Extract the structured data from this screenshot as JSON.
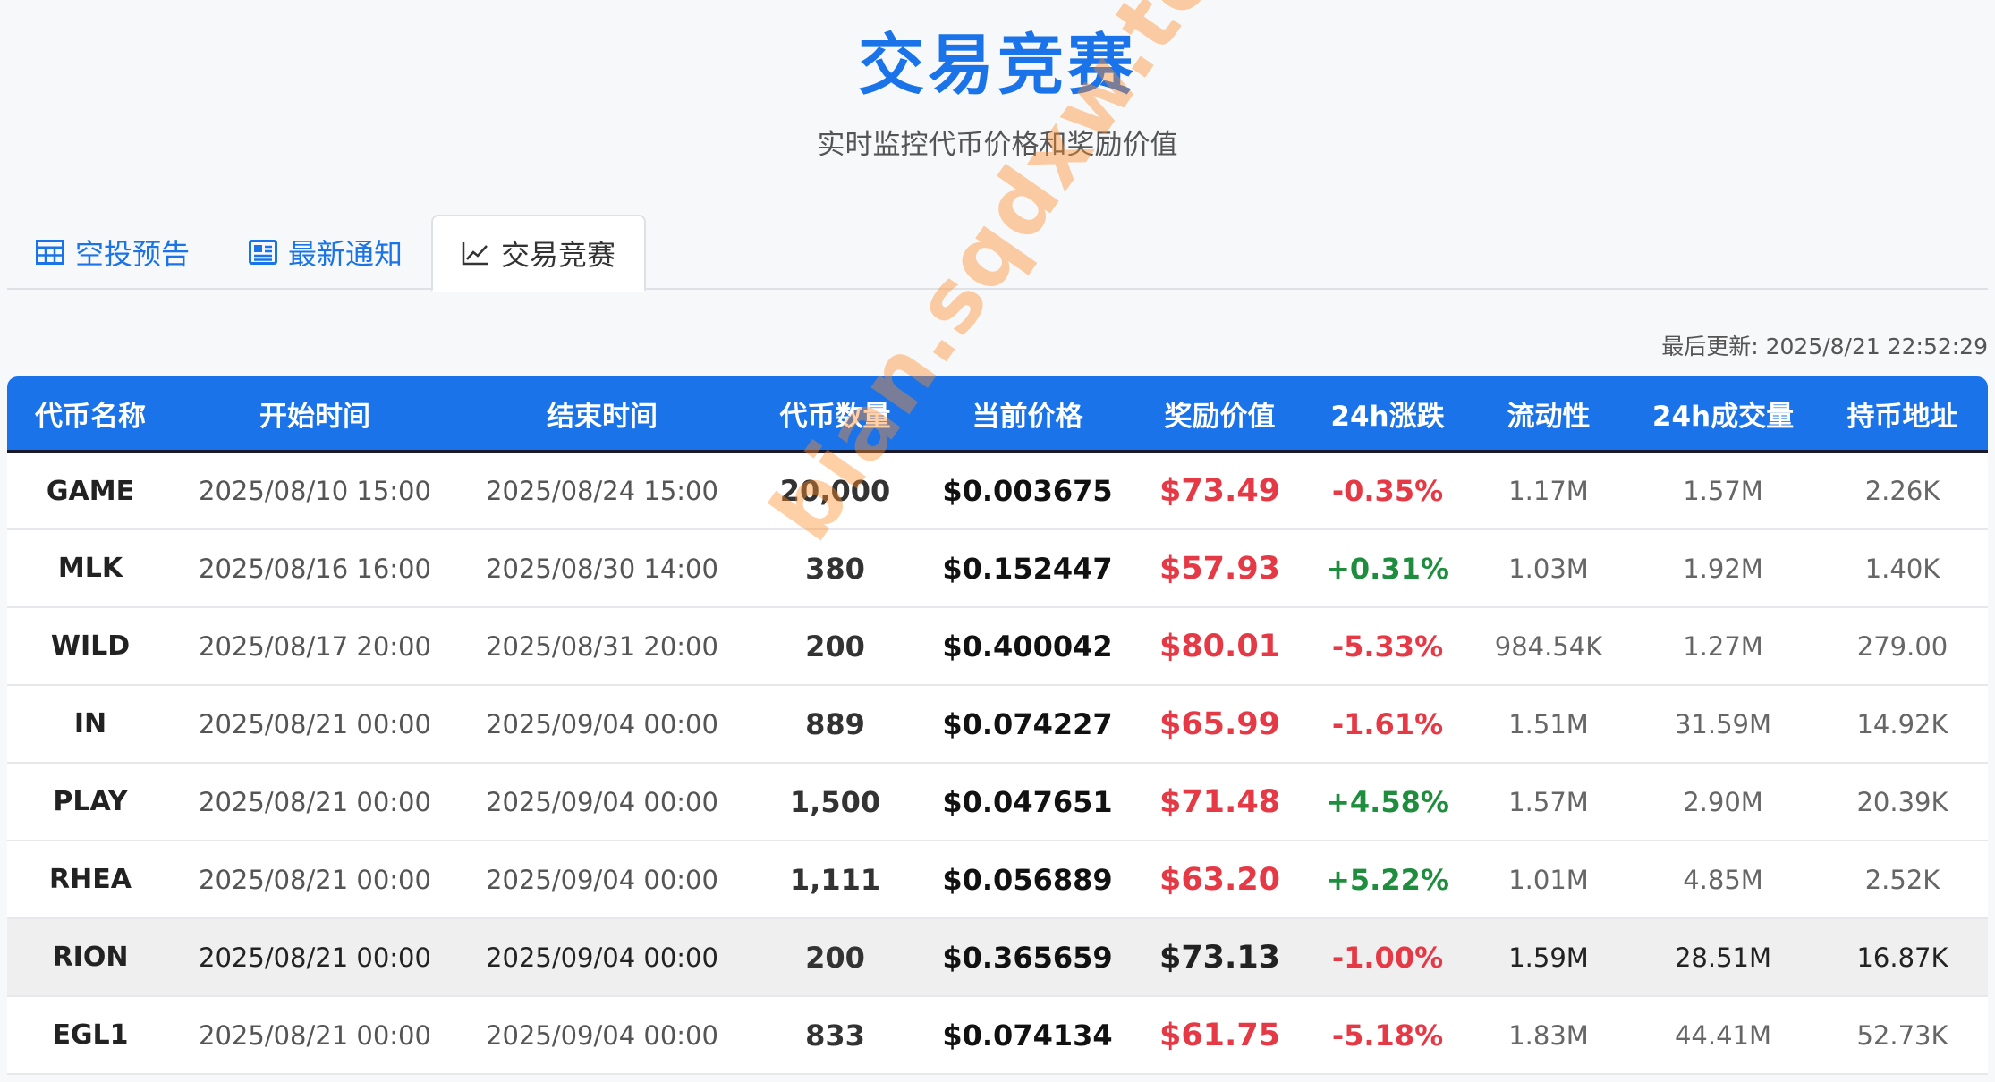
{
  "header": {
    "title": "交易竞赛",
    "subtitle": "实时监控代币价格和奖励价值"
  },
  "tabs": [
    {
      "label": "空投预告",
      "icon": "table-icon",
      "active": false
    },
    {
      "label": "最新通知",
      "icon": "newspaper-icon",
      "active": false
    },
    {
      "label": "交易竞赛",
      "icon": "chart-line-icon",
      "active": true
    }
  ],
  "last_updated": "最后更新: 2025/8/21 22:52:29",
  "table": {
    "columns": [
      "代币名称",
      "开始时间",
      "结束时间",
      "代币数量",
      "当前价格",
      "奖励价值",
      "24h涨跌",
      "流动性",
      "24h成交量",
      "持币地址"
    ],
    "rows": [
      {
        "name": "GAME",
        "start": "2025/08/10 15:00",
        "end": "2025/08/24 15:00",
        "qty": "20,000",
        "price": "$0.003675",
        "reward": "$73.49",
        "change": "-0.35%",
        "liquidity": "1.17M",
        "volume": "1.57M",
        "holders": "2.26K"
      },
      {
        "name": "MLK",
        "start": "2025/08/16 16:00",
        "end": "2025/08/30 14:00",
        "qty": "380",
        "price": "$0.152447",
        "reward": "$57.93",
        "change": "+0.31%",
        "liquidity": "1.03M",
        "volume": "1.92M",
        "holders": "1.40K"
      },
      {
        "name": "WILD",
        "start": "2025/08/17 20:00",
        "end": "2025/08/31 20:00",
        "qty": "200",
        "price": "$0.400042",
        "reward": "$80.01",
        "change": "-5.33%",
        "liquidity": "984.54K",
        "volume": "1.27M",
        "holders": "279.00"
      },
      {
        "name": "IN",
        "start": "2025/08/21 00:00",
        "end": "2025/09/04 00:00",
        "qty": "889",
        "price": "$0.074227",
        "reward": "$65.99",
        "change": "-1.61%",
        "liquidity": "1.51M",
        "volume": "31.59M",
        "holders": "14.92K"
      },
      {
        "name": "PLAY",
        "start": "2025/08/21 00:00",
        "end": "2025/09/04 00:00",
        "qty": "1,500",
        "price": "$0.047651",
        "reward": "$71.48",
        "change": "+4.58%",
        "liquidity": "1.57M",
        "volume": "2.90M",
        "holders": "20.39K"
      },
      {
        "name": "RHEA",
        "start": "2025/08/21 00:00",
        "end": "2025/09/04 00:00",
        "qty": "1,111",
        "price": "$0.056889",
        "reward": "$63.20",
        "change": "+5.22%",
        "liquidity": "1.01M",
        "volume": "4.85M",
        "holders": "2.52K"
      },
      {
        "name": "RION",
        "start": "2025/08/21 00:00",
        "end": "2025/09/04 00:00",
        "qty": "200",
        "price": "$0.365659",
        "reward": "$73.13",
        "change": "-1.00%",
        "liquidity": "1.59M",
        "volume": "28.51M",
        "holders": "16.87K"
      },
      {
        "name": "EGL1",
        "start": "2025/08/21 00:00",
        "end": "2025/09/04 00:00",
        "qty": "833",
        "price": "$0.074134",
        "reward": "$61.75",
        "change": "-5.18%",
        "liquidity": "1.83M",
        "volume": "44.41M",
        "holders": "52.73K"
      }
    ]
  },
  "watermark": "bian.sqdxw.top",
  "colors": {
    "accent": "#1a73e8",
    "negative": "#e53946",
    "positive": "#1e8e3e",
    "watermark": "#ff8c28"
  }
}
